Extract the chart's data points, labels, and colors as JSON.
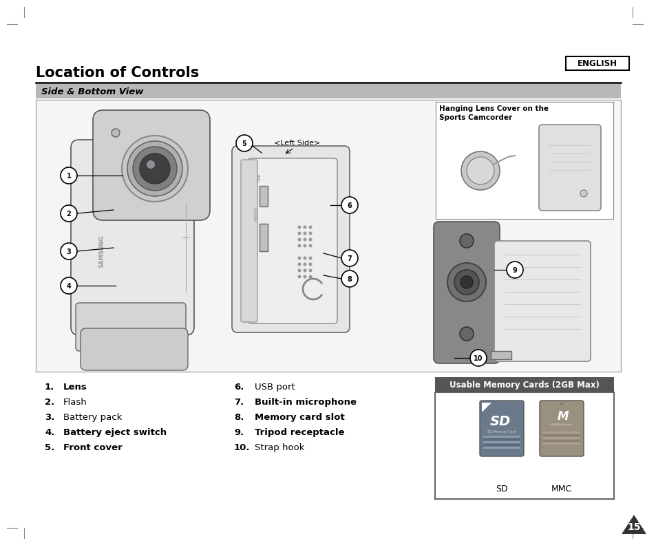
{
  "page_bg": "#ffffff",
  "english_box_text": "ENGLISH",
  "title": "Location of Controls",
  "subtitle": "Side & Bottom View",
  "subtitle_bg": "#b8b8b8",
  "left_items": [
    {
      "num": "1.",
      "text": "Lens",
      "bold": false
    },
    {
      "num": "2.",
      "text": "Flash",
      "bold": false
    },
    {
      "num": "3.",
      "text": "Battery pack",
      "bold": false
    },
    {
      "num": "4.",
      "text": "Battery eject switch",
      "bold": false
    },
    {
      "num": "5.",
      "text": "Front cover",
      "bold": false
    }
  ],
  "right_items": [
    {
      "num": "6.",
      "text": "USB port",
      "bold": false
    },
    {
      "num": "7.",
      "text": "Built-in microphone",
      "bold": false
    },
    {
      "num": "8.",
      "text": "Memory card slot",
      "bold": false
    },
    {
      "num": "9.",
      "text": "Tripod receptacle",
      "bold": false
    },
    {
      "num": "10.",
      "text": "Strap hook",
      "bold": false
    }
  ],
  "usable_title": "Usable Memory Cards (2GB Max)",
  "sd_label": "SD",
  "mmc_label": "MMC",
  "page_number": "15",
  "hanging_lens_title": "Hanging Lens Cover on the\nSports Camcorder",
  "left_side_label": "<Left Side>"
}
